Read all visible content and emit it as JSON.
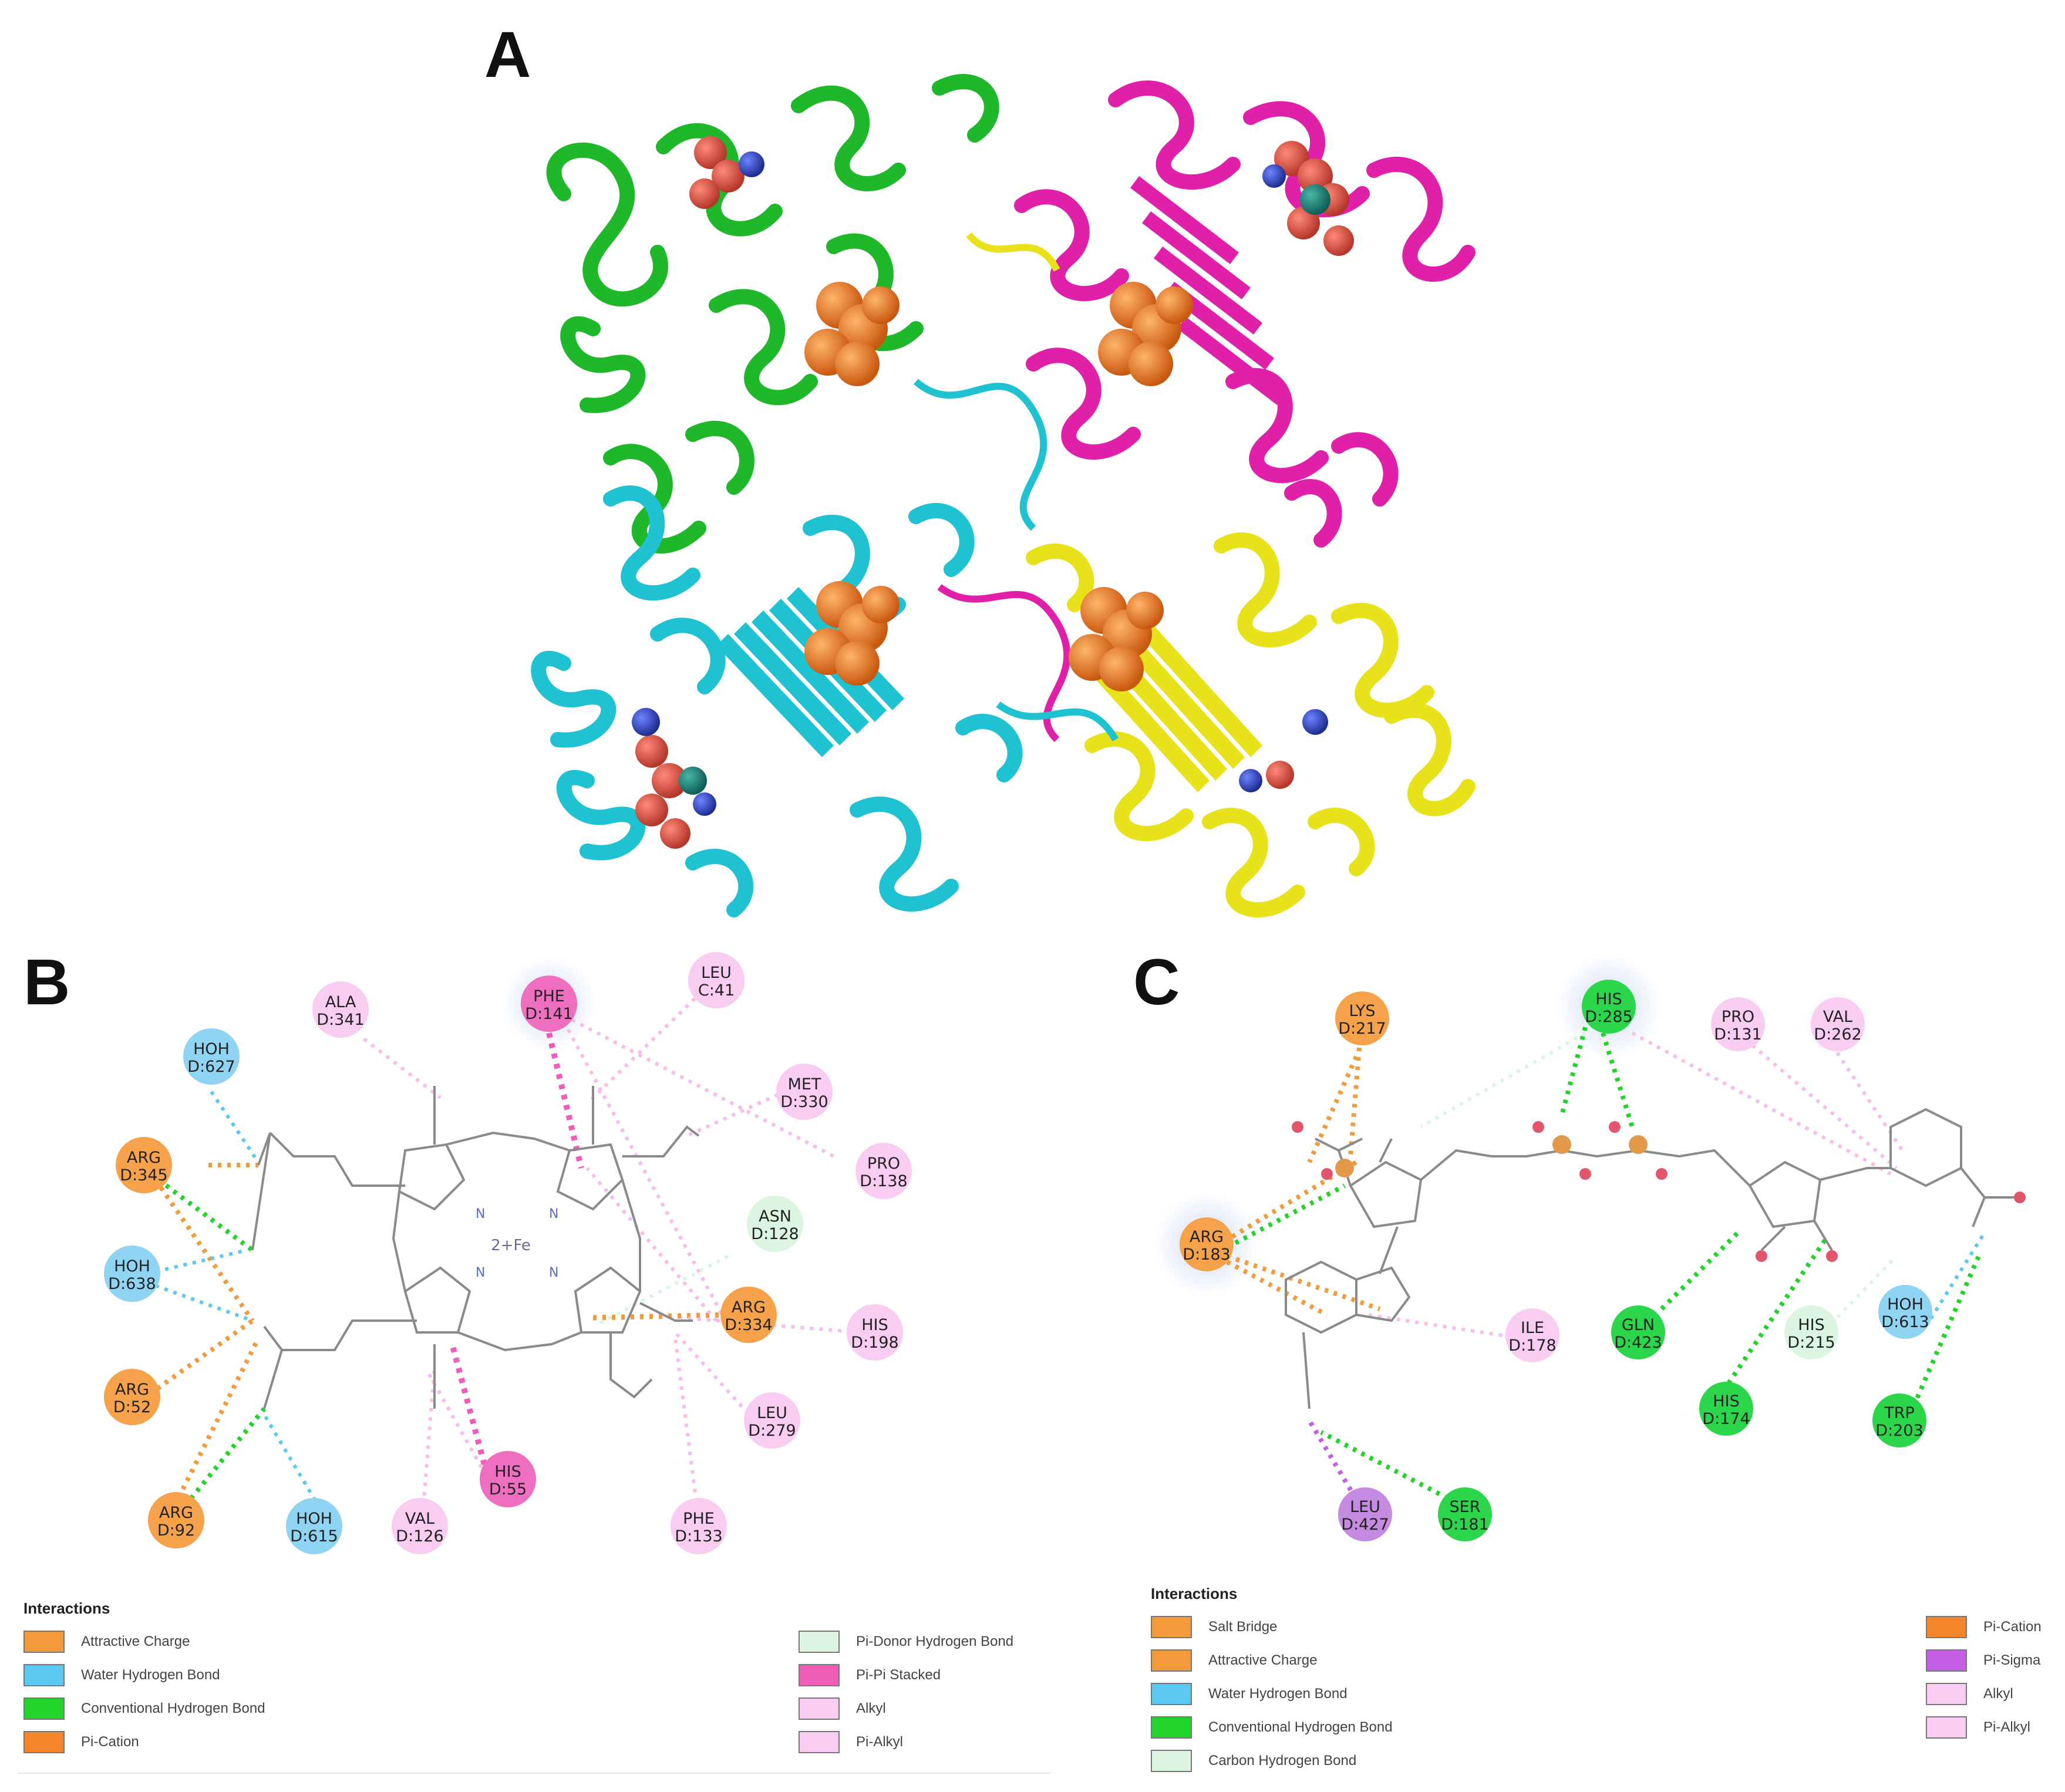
{
  "panels": {
    "a": "A",
    "b": "B",
    "c": "C"
  },
  "panel_b": {
    "residues": [
      {
        "id": "ala341",
        "line1": "ALA",
        "line2": "D:341",
        "color": "#f9cdf2"
      },
      {
        "id": "phe141",
        "line1": "PHE",
        "line2": "D:141",
        "color": "#ee6fbf"
      },
      {
        "id": "leu41",
        "line1": "LEU",
        "line2": "C:41",
        "color": "#f9cdf2"
      },
      {
        "id": "hoh627",
        "line1": "HOH",
        "line2": "D:627",
        "color": "#8fd4f2"
      },
      {
        "id": "met330",
        "line1": "MET",
        "line2": "D:330",
        "color": "#f9cdf2"
      },
      {
        "id": "arg345",
        "line1": "ARG",
        "line2": "D:345",
        "color": "#f6a24a"
      },
      {
        "id": "pro138",
        "line1": "PRO",
        "line2": "D:138",
        "color": "#f9cdf2"
      },
      {
        "id": "asn128",
        "line1": "ASN",
        "line2": "D:128",
        "color": "#dcf5e0"
      },
      {
        "id": "hoh638",
        "line1": "HOH",
        "line2": "D:638",
        "color": "#8fd4f2"
      },
      {
        "id": "arg334",
        "line1": "ARG",
        "line2": "D:334",
        "color": "#f6a24a"
      },
      {
        "id": "his198",
        "line1": "HIS",
        "line2": "D:198",
        "color": "#f9cdf2"
      },
      {
        "id": "arg52",
        "line1": "ARG",
        "line2": "D:52",
        "color": "#f6a24a"
      },
      {
        "id": "leu279",
        "line1": "LEU",
        "line2": "D:279",
        "color": "#f9cdf2"
      },
      {
        "id": "his55",
        "line1": "HIS",
        "line2": "D:55",
        "color": "#ee6fbf"
      },
      {
        "id": "arg92",
        "line1": "ARG",
        "line2": "D:92",
        "color": "#f6a24a"
      },
      {
        "id": "hoh615",
        "line1": "HOH",
        "line2": "D:615",
        "color": "#8fd4f2"
      },
      {
        "id": "val126",
        "line1": "VAL",
        "line2": "D:126",
        "color": "#f9cdf2"
      },
      {
        "id": "phe133",
        "line1": "PHE",
        "line2": "D:133",
        "color": "#f9cdf2"
      }
    ],
    "center_label": "2+Fe",
    "legend_title": "Interactions",
    "legend": [
      {
        "label": "Attractive Charge",
        "color": "#f39a3c"
      },
      {
        "label": "Water Hydrogen Bond",
        "color": "#5bc8ef"
      },
      {
        "label": "Conventional Hydrogen Bond",
        "color": "#22d42a"
      },
      {
        "label": "Pi-Cation",
        "color": "#f3862b"
      },
      {
        "label": "Pi-Donor Hydrogen Bond",
        "color": "#dcf5e0"
      },
      {
        "label": "Pi-Pi Stacked",
        "color": "#ef5db8"
      },
      {
        "label": "Alkyl",
        "color": "#f9cdf2"
      },
      {
        "label": "Pi-Alkyl",
        "color": "#f9cdf2"
      }
    ]
  },
  "panel_c": {
    "residues": [
      {
        "id": "lys217",
        "line1": "LYS",
        "line2": "D:217",
        "color": "#f6a24a"
      },
      {
        "id": "his285",
        "line1": "HIS",
        "line2": "D:285",
        "color": "#2bd64a"
      },
      {
        "id": "pro131",
        "line1": "PRO",
        "line2": "D:131",
        "color": "#f9cdf2"
      },
      {
        "id": "val262",
        "line1": "VAL",
        "line2": "D:262",
        "color": "#f9cdf2"
      },
      {
        "id": "arg183",
        "line1": "ARG",
        "line2": "D:183",
        "color": "#f6a24a"
      },
      {
        "id": "gln423",
        "line1": "GLN",
        "line2": "D:423",
        "color": "#2bd64a"
      },
      {
        "id": "his215",
        "line1": "HIS",
        "line2": "D:215",
        "color": "#dcf5e0"
      },
      {
        "id": "hoh613",
        "line1": "HOH",
        "line2": "D:613",
        "color": "#8fd4f2"
      },
      {
        "id": "ile178",
        "line1": "ILE",
        "line2": "D:178",
        "color": "#f9cdf2"
      },
      {
        "id": "his174",
        "line1": "HIS",
        "line2": "D:174",
        "color": "#2bd64a"
      },
      {
        "id": "trp203",
        "line1": "TRP",
        "line2": "D:203",
        "color": "#2bd64a"
      },
      {
        "id": "leu427",
        "line1": "LEU",
        "line2": "D:427",
        "color": "#c48be0"
      },
      {
        "id": "ser181",
        "line1": "SER",
        "line2": "D:181",
        "color": "#2bd64a"
      }
    ],
    "legend_title": "Interactions",
    "legend": [
      {
        "label": "Salt Bridge",
        "color": "#f39a3c"
      },
      {
        "label": "Attractive Charge",
        "color": "#f39a3c"
      },
      {
        "label": "Water Hydrogen Bond",
        "color": "#5bc8ef"
      },
      {
        "label": "Conventional Hydrogen Bond",
        "color": "#22d42a"
      },
      {
        "label": "Carbon Hydrogen Bond",
        "color": "#dcf5e0"
      },
      {
        "label": "Pi-Cation",
        "color": "#f3862b"
      },
      {
        "label": "Pi-Sigma",
        "color": "#c45ee6"
      },
      {
        "label": "Alkyl",
        "color": "#f9cdf2"
      },
      {
        "label": "Pi-Alkyl",
        "color": "#f9cdf2"
      }
    ]
  },
  "colors": {
    "chain_green": "#1fb82a",
    "chain_magenta": "#e020a8",
    "chain_cyan": "#1fc2d0",
    "chain_yellow": "#e8e21a",
    "ligand_orange": "#e8741c",
    "ligand_red": "#d84a3a",
    "ligand_blue": "#2a3fb0"
  }
}
